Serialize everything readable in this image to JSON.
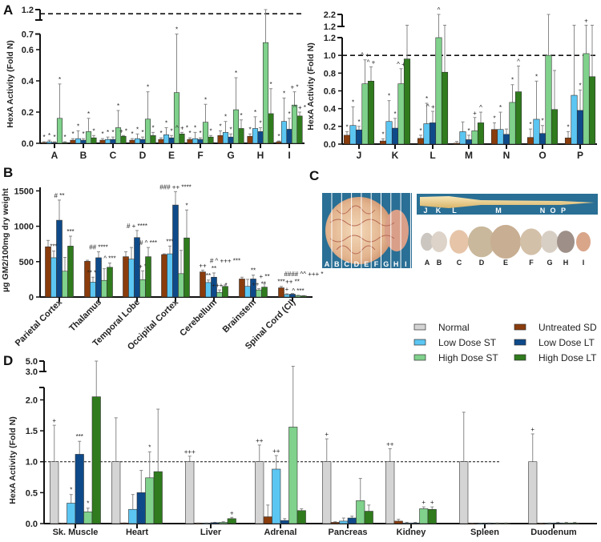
{
  "panels": {
    "a": "A",
    "b": "B",
    "c": "C",
    "d": "D"
  },
  "colors": {
    "normal": "#d4d4d4",
    "untreated_sd": "#8a3c0c",
    "low_dose_st": "#5cc6f2",
    "low_dose_lt": "#0e4a8a",
    "high_dose_st": "#7fd18b",
    "high_dose_lt": "#2f7b1d"
  },
  "panel_c": {
    "brain_sections": [
      "A",
      "B",
      "C",
      "D",
      "E",
      "F",
      "G",
      "H",
      "I"
    ],
    "spinal_sections": [
      "J",
      "K",
      "L",
      "M",
      "N",
      "O",
      "P"
    ],
    "slice_labels": [
      "A",
      "B",
      "C",
      "D",
      "E",
      "F",
      "G",
      "H",
      "I"
    ]
  },
  "chart_data": [
    {
      "id": "A_brain",
      "type": "bar",
      "ylabel": "HexA  Activity (Fold N)",
      "reference_line": 1.0,
      "yticks": [
        {
          "v": 0,
          "label": "0.0"
        },
        {
          "v": 0.2,
          "label": "0.2"
        },
        {
          "v": 0.4,
          "label": "0.4"
        },
        {
          "v": 0.6,
          "label": "0.6"
        },
        {
          "v": 0.7,
          "label": "0.7"
        },
        {
          "v": 1.2,
          "label": "1.2"
        }
      ],
      "series": [
        "untreated_sd",
        "low_dose_st",
        "low_dose_lt",
        "high_dose_st",
        "high_dose_lt"
      ],
      "groups": [
        {
          "label": "A",
          "values": [
            0.005,
            0.01,
            0.005,
            0.16,
            0.005
          ],
          "err_top": [
            0.01,
            0.02,
            0.01,
            0.38,
            0.01
          ],
          "annot": [
            "*",
            "*",
            "*",
            "*",
            "*"
          ]
        },
        {
          "label": "B",
          "values": [
            0.02,
            0.03,
            0.02,
            0.075,
            0.035
          ],
          "err_top": [
            0.03,
            0.08,
            0.03,
            0.16,
            0.05
          ],
          "annot": [
            "*",
            "*",
            "*",
            "*",
            "*"
          ]
        },
        {
          "label": "C",
          "values": [
            0.02,
            0.025,
            0.025,
            0.1,
            0.045
          ],
          "err_top": [
            0.03,
            0.04,
            0.04,
            0.21,
            0.05
          ],
          "annot": [
            "*",
            "*",
            "*",
            "*",
            "+ *"
          ]
        },
        {
          "label": "D",
          "values": [
            0.02,
            0.03,
            0.025,
            0.155,
            0.05
          ],
          "err_top": [
            0.03,
            0.06,
            0.04,
            0.33,
            0.07
          ],
          "annot": [
            "*",
            "*",
            "*",
            "*",
            "*"
          ]
        },
        {
          "label": "E",
          "values": [
            0.025,
            0.055,
            0.035,
            0.325,
            0.06
          ],
          "err_top": [
            0.035,
            0.1,
            0.05,
            0.7,
            0.07
          ],
          "annot": [
            "*",
            "*",
            "*",
            "*",
            "^ + *"
          ]
        },
        {
          "label": "F",
          "values": [
            0.025,
            0.03,
            0.025,
            0.135,
            0.04
          ],
          "err_top": [
            0.035,
            0.07,
            0.035,
            0.25,
            0.05
          ],
          "annot": [
            "*",
            "*",
            "*",
            "*",
            "*"
          ]
        },
        {
          "label": "G",
          "values": [
            0.05,
            0.07,
            0.04,
            0.215,
            0.095
          ],
          "err_top": [
            0.08,
            0.14,
            0.06,
            0.42,
            0.15
          ],
          "annot": [
            "*",
            "*",
            "*",
            "*",
            "*"
          ]
        },
        {
          "label": "H",
          "values": [
            0.045,
            0.095,
            0.075,
            0.645,
            0.19
          ],
          "err_top": [
            0.06,
            0.17,
            0.1,
            1.2,
            0.35
          ],
          "annot": [
            "*",
            "*",
            "*",
            "",
            "*"
          ]
        },
        {
          "label": "I",
          "values": [
            0.01,
            0.14,
            0.09,
            0.245,
            0.175
          ],
          "err_top": [
            0.015,
            0.29,
            0.16,
            0.33,
            0.2
          ],
          "annot": [
            "*",
            "*",
            "*",
            "+ *",
            "^ + *"
          ]
        }
      ]
    },
    {
      "id": "A_spinal",
      "type": "bar",
      "ylabel": "HexA  Activity (Fold N)",
      "reference_line": 1.0,
      "yticks": [
        {
          "v": 0,
          "label": "0.0"
        },
        {
          "v": 0.2,
          "label": "0.2"
        },
        {
          "v": 0.4,
          "label": "0.4"
        },
        {
          "v": 0.6,
          "label": "0.6"
        },
        {
          "v": 0.8,
          "label": "0.8"
        },
        {
          "v": 1.0,
          "label": "1.0"
        },
        {
          "v": 1.2,
          "label": "1.2"
        },
        {
          "v": 1.2001,
          "label": "1.2"
        },
        {
          "v": 2.2,
          "label": "2.2"
        }
      ],
      "series": [
        "untreated_sd",
        "low_dose_st",
        "low_dose_lt",
        "high_dose_st",
        "high_dose_lt"
      ],
      "groups": [
        {
          "label": "J",
          "values": [
            0.1,
            0.21,
            0.16,
            0.68,
            0.71
          ],
          "err_top": [
            0.14,
            0.42,
            0.2,
            0.95,
            0.87
          ],
          "annot": [
            "*",
            "*",
            "*",
            "^ +",
            "^ +"
          ]
        },
        {
          "label": "K",
          "values": [
            0.035,
            0.255,
            0.18,
            0.68,
            0.96
          ],
          "err_top": [
            0.06,
            0.49,
            0.29,
            0.85,
            1.3
          ],
          "annot": [
            "*",
            "*",
            "*",
            "^ +",
            ""
          ]
        },
        {
          "label": "L",
          "values": [
            0.065,
            0.23,
            0.24,
            1.2,
            0.81
          ],
          "err_top": [
            0.1,
            0.46,
            0.37,
            2.2,
            1.3
          ],
          "annot": [
            "*",
            "*",
            "^ + *",
            "^",
            ""
          ]
        },
        {
          "label": "M",
          "values": [
            0.01,
            0.14,
            0.05,
            0.15,
            0.24
          ],
          "err_top": [
            0.03,
            0.25,
            0.1,
            0.3,
            0.36
          ],
          "annot": [
            "",
            "",
            "*",
            "+",
            "^"
          ]
        },
        {
          "label": "N",
          "values": [
            0.165,
            0.165,
            0.11,
            0.47,
            0.59
          ],
          "err_top": [
            0.24,
            0.36,
            0.17,
            0.67,
            0.88
          ],
          "annot": [
            "*",
            "*",
            "",
            "*",
            "^"
          ]
        },
        {
          "label": "O",
          "values": [
            0.075,
            0.28,
            0.12,
            1.0,
            0.39
          ],
          "err_top": [
            0.17,
            0.71,
            0.21,
            2.2,
            0.83
          ],
          "annot": [
            "*",
            "*",
            "*",
            "",
            ""
          ]
        },
        {
          "label": "P",
          "values": [
            0.07,
            0.55,
            0.38,
            1.02,
            0.76
          ],
          "err_top": [
            0.14,
            1.3,
            0.61,
            1.3,
            1.3
          ],
          "annot": [
            "*",
            "",
            "*",
            "+",
            ""
          ]
        }
      ]
    },
    {
      "id": "B",
      "type": "bar",
      "ylabel": "µg GM2/100mg dry weight",
      "yticks": [
        {
          "v": 0,
          "label": "0"
        },
        {
          "v": 500,
          "label": "500"
        },
        {
          "v": 1000,
          "label": "1000"
        },
        {
          "v": 1500,
          "label": "1500"
        }
      ],
      "series": [
        "untreated_sd",
        "low_dose_st",
        "low_dose_lt",
        "high_dose_st",
        "high_dose_lt"
      ],
      "groups": [
        {
          "label": "Parietal Cortex",
          "values": [
            710,
            555,
            1085,
            365,
            720
          ],
          "err_top": [
            800,
            650,
            1370,
            560,
            860
          ],
          "annot": [
            "",
            "***",
            "# **",
            "",
            "***"
          ]
        },
        {
          "label": "Thalamus",
          "values": [
            505,
            210,
            555,
            235,
            420
          ],
          "err_top": [
            520,
            280,
            640,
            400,
            480
          ],
          "annot": [
            "",
            "** **",
            "## ****",
            "",
            "^ ***"
          ]
        },
        {
          "label": "Temporal Lobe",
          "values": [
            570,
            535,
            840,
            245,
            570
          ],
          "err_top": [
            640,
            700,
            940,
            370,
            700
          ],
          "annot": [
            "",
            "",
            "# + ****",
            "+ *",
            "# ^ ***"
          ]
        },
        {
          "label": "Occipital Cortex",
          "values": [
            600,
            610,
            1300,
            330,
            835
          ],
          "err_top": [
            610,
            720,
            1490,
            660,
            1230
          ],
          "annot": [
            "",
            "***",
            "### ++ ****",
            "",
            "*"
          ]
        },
        {
          "label": "Cerebellum",
          "values": [
            355,
            205,
            280,
            65,
            150
          ],
          "err_top": [
            380,
            240,
            340,
            100,
            170
          ],
          "annot": [
            "++",
            "**",
            "**",
            "+++ *",
            "# ^ +++ ***"
          ]
        },
        {
          "label": "Brainstem",
          "values": [
            255,
            150,
            255,
            100,
            140
          ],
          "err_top": [
            280,
            250,
            310,
            120,
            190
          ],
          "annot": [
            "",
            "",
            "**",
            "++ **",
            "+ **"
          ]
        },
        {
          "label": "Spinal Cord (Cl)",
          "values": [
            130,
            35,
            40,
            20,
            15
          ],
          "err_top": [
            150,
            45,
            50,
            25,
            20
          ],
          "annot": [
            "***",
            "+",
            "++ **",
            "^ ***",
            "#### ^^ +++ *"
          ]
        }
      ]
    },
    {
      "id": "D",
      "type": "bar",
      "ylabel": "HexA  Activity (Fold N)",
      "reference_line": 1.0,
      "yticks": [
        {
          "v": 0,
          "label": "0.0"
        },
        {
          "v": 0.5,
          "label": "0.5"
        },
        {
          "v": 1.0,
          "label": "1.0"
        },
        {
          "v": 1.5,
          "label": "1.5"
        },
        {
          "v": 2.0,
          "label": "2.0"
        },
        {
          "v": 3.0,
          "label": "3.0"
        },
        {
          "v": 5.0,
          "label": "5.0"
        }
      ],
      "series": [
        "normal",
        "untreated_sd",
        "low_dose_st",
        "low_dose_lt",
        "high_dose_st",
        "high_dose_lt"
      ],
      "legend": [
        "Normal",
        "Untreated SD",
        "Low Dose ST",
        "Low Dose LT",
        "High Dose ST",
        "High Dose LT"
      ],
      "groups": [
        {
          "label": "Sk. Muscle",
          "values": [
            1,
            0,
            0.33,
            1.12,
            0.19,
            2.05
          ],
          "err_top": [
            1.59,
            0,
            0.47,
            1.33,
            0.25,
            5.0
          ],
          "annot": [
            "+",
            "",
            "*",
            "***",
            "*",
            ""
          ]
        },
        {
          "label": "Heart",
          "values": [
            1,
            0.01,
            0.23,
            0.5,
            0.74,
            0.84
          ],
          "err_top": [
            1.71,
            0.01,
            0.47,
            0.86,
            1.16,
            1.85
          ],
          "annot": [
            "",
            "",
            "",
            "",
            "*",
            ""
          ]
        },
        {
          "label": "Liver",
          "values": [
            1,
            0.005,
            0.005,
            0.015,
            0.02,
            0.08
          ],
          "err_top": [
            1.09,
            0.01,
            0.01,
            0.02,
            0.03,
            0.1
          ],
          "annot": [
            "+++",
            "",
            "",
            "",
            "",
            "+"
          ]
        },
        {
          "label": "Adrenal",
          "values": [
            1,
            0.11,
            0.88,
            0.05,
            1.56,
            0.21
          ],
          "err_top": [
            1.27,
            0.3,
            1.1,
            0.08,
            4.0,
            0.24
          ],
          "annot": [
            "++",
            "",
            "++",
            "",
            "",
            ""
          ]
        },
        {
          "label": "Pancreas",
          "values": [
            1,
            0.02,
            0.04,
            0.09,
            0.37,
            0.2
          ],
          "err_top": [
            1.37,
            0.03,
            0.09,
            0.12,
            0.73,
            0.3
          ],
          "annot": [
            "+",
            "",
            "",
            "",
            "",
            ""
          ]
        },
        {
          "label": "Kidney",
          "values": [
            1,
            0.04,
            0.01,
            0.01,
            0.24,
            0.23
          ],
          "err_top": [
            1.21,
            0.07,
            0.02,
            0.02,
            0.27,
            0.27
          ],
          "annot": [
            "++",
            "",
            "",
            "",
            "+",
            "+"
          ]
        },
        {
          "label": "Spleen",
          "values": [
            1,
            0,
            0,
            0.005,
            0.005,
            0.005
          ],
          "err_top": [
            1.8,
            0,
            0,
            0.01,
            0.01,
            0.01
          ],
          "annot": [
            "",
            "",
            "",
            "",
            "",
            ""
          ]
        },
        {
          "label": "Duodenum",
          "values": [
            1,
            0,
            0.005,
            0.01,
            0.01,
            0.01
          ],
          "err_top": [
            1.45,
            0,
            0.01,
            0.02,
            0.02,
            0.02
          ],
          "annot": [
            "+",
            "",
            "",
            "",
            "",
            ""
          ]
        }
      ]
    }
  ]
}
